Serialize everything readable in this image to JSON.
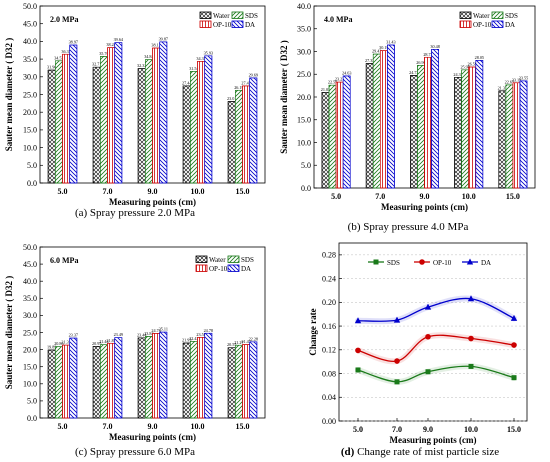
{
  "captions": [
    {
      "letter": "(a)",
      "text": " Spray pressure 2.0 MPa"
    },
    {
      "letter": "(b)",
      "text": " Spray pressure 4.0 MPa"
    },
    {
      "letter": "(c)",
      "text": " Spray pressure 6.0 MPa"
    },
    {
      "letter": "(d)",
      "text": " Change rate of mist particle size"
    }
  ],
  "colors": {
    "Water": "#000000",
    "SDS": "#1a7a1a",
    "OP-10": "#cc0000",
    "DA": "#0000cc"
  },
  "chart_data": [
    {
      "type": "bar",
      "pressure_label": "2.0 MPa",
      "categories": [
        "5.0",
        "7.0",
        "9.0",
        "10.0",
        "15.0"
      ],
      "series": [
        {
          "name": "Water",
          "values": [
            31.9,
            32.71,
            32.32,
            27.44,
            23.01
          ]
        },
        {
          "name": "SDS",
          "values": [
            34.53,
            35.76,
            34.84,
            31.54,
            26.19
          ]
        },
        {
          "name": "OP-10",
          "values": [
            36.37,
            38.24,
            38.13,
            34.37,
            27.43
          ]
        },
        {
          "name": "DA",
          "values": [
            38.97,
            39.64,
            39.87,
            35.93,
            29.69
          ]
        }
      ],
      "value_labels": [
        [
          "31.90",
          "34.53",
          "36.37",
          "38.97"
        ],
        [
          "32.71",
          "35.76",
          "38.24",
          "39.64"
        ],
        [
          "32.32",
          "34.84",
          "38.13",
          "39.87"
        ],
        [
          "27.44",
          "31.54",
          "34.37",
          "35.93"
        ],
        [
          "23.01",
          "26.19",
          "27.43",
          "29.69"
        ]
      ],
      "xlabel": "Measuring points (cm)",
      "ylabel": "Sauter mean diameter ( D32 )",
      "ylim": [
        0,
        50
      ],
      "yticks": [
        "0.0",
        "5.0",
        "10.0",
        "15.0",
        "20.0",
        "25.0",
        "30.0",
        "35.0",
        "40.0",
        "45.0",
        "50.0"
      ]
    },
    {
      "type": "bar",
      "pressure_label": "4.0 MPa",
      "categories": [
        "5.0",
        "7.0",
        "9.0",
        "10.0",
        "15.0"
      ],
      "series": [
        {
          "name": "Water",
          "values": [
            21.03,
            27.35,
            24.72,
            24.33,
            21.37
          ]
        },
        {
          "name": "SDS",
          "values": [
            22.59,
            29.43,
            26.96,
            25.98,
            22.67
          ]
        },
        {
          "name": "OP-10",
          "values": [
            23.27,
            30.19,
            28.73,
            26.59,
            23.13
          ]
        },
        {
          "name": "DA",
          "values": [
            24.63,
            31.43,
            30.48,
            28.05,
            23.55
          ]
        }
      ],
      "value_labels": [
        [
          "21.03",
          "22.59",
          "23.27",
          "24.63"
        ],
        [
          "27.35",
          "29.43",
          "30.19",
          "31.43"
        ],
        [
          "24.72",
          "26.96",
          "28.73",
          "30.48"
        ],
        [
          "24.33",
          "25.98",
          "26.59",
          "28.05"
        ],
        [
          "21.37",
          "22.67",
          "23.13",
          "23.55"
        ]
      ],
      "xlabel": "Measuring points (cm)",
      "ylabel": "Sauter mean diameter ( D32 )",
      "ylim": [
        0,
        40
      ],
      "yticks": [
        "0.0",
        "5.0",
        "10.0",
        "15.0",
        "20.0",
        "25.0",
        "30.0",
        "35.0",
        "40.0"
      ]
    },
    {
      "type": "bar",
      "pressure_label": "6.0 MPa",
      "categories": [
        "5.0",
        "7.0",
        "9.0",
        "10.0",
        "15.0"
      ],
      "series": [
        {
          "name": "Water",
          "values": [
            19.89,
            20.95,
            23.44,
            21.93,
            20.55
          ]
        },
        {
          "name": "SDS",
          "values": [
            20.86,
            21.44,
            23.84,
            22.42,
            21.27
          ]
        },
        {
          "name": "OP-10",
          "values": [
            21.31,
            21.85,
            24.74,
            23.58,
            21.47
          ]
        },
        {
          "name": "DA",
          "values": [
            23.37,
            23.49,
            25.11,
            24.78,
            22.28
          ]
        }
      ],
      "value_labels": [
        [
          "19.89",
          "20.86",
          "21.31",
          "23.37"
        ],
        [
          "20.95",
          "21.44",
          "21.85",
          "23.49"
        ],
        [
          "23.44",
          "23.84",
          "24.74",
          "25.11"
        ],
        [
          "21.93",
          "22.42",
          "23.58",
          "24.78"
        ],
        [
          "20.55",
          "21.27",
          "21.47",
          "22.28"
        ]
      ],
      "xlabel": "Measuring points (cm)",
      "ylabel": "Sauter mean diameter ( D32 )",
      "ylim": [
        0,
        50
      ],
      "yticks": [
        "0.0",
        "5.0",
        "10.0",
        "15.0",
        "20.0",
        "25.0",
        "30.0",
        "35.0",
        "40.0",
        "45.0",
        "50.0"
      ]
    },
    {
      "type": "line",
      "x": [
        5.0,
        7.0,
        9.0,
        10.0,
        15.0
      ],
      "categories": [
        "5.0",
        "7.0",
        "9.0",
        "10.0",
        "15.0"
      ],
      "series": [
        {
          "name": "SDS",
          "marker": "square",
          "values": [
            0.086,
            0.066,
            0.083,
            0.092,
            0.073
          ]
        },
        {
          "name": "OP-10",
          "marker": "circle",
          "values": [
            0.119,
            0.101,
            0.142,
            0.139,
            0.128
          ]
        },
        {
          "name": "DA",
          "marker": "triangle",
          "values": [
            0.169,
            0.17,
            0.192,
            0.206,
            0.173
          ]
        }
      ],
      "xlabel": "Measuring points (cm)",
      "ylabel": "Change rate",
      "ylim": [
        0,
        0.3
      ],
      "yticks": [
        "0.00",
        "0.04",
        "0.08",
        "0.12",
        "0.16",
        "0.20",
        "0.24",
        "0.28"
      ],
      "grid": true,
      "legend": "top"
    }
  ]
}
